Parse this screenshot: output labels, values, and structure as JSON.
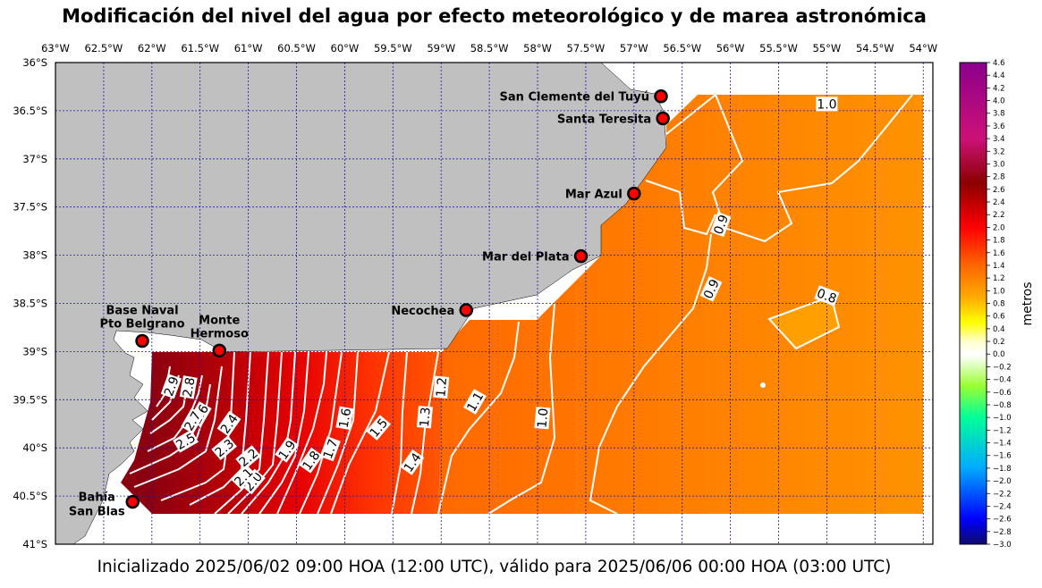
{
  "title": "Modificación del nivel del agua por efecto meteorológico y de marea astronómica",
  "subtitle": "Inicializado 2025/06/02 09:00 HOA (12:00 UTC), válido para 2025/06/06 00:00 HOA (03:00 UTC)",
  "map": {
    "lon_range": [
      -63.0,
      -53.9
    ],
    "lat_range": [
      -41.0,
      -36.0
    ],
    "lon_ticks": [
      {
        "value": -63.0,
        "label": "63°W"
      },
      {
        "value": -62.5,
        "label": "62.5°W"
      },
      {
        "value": -62.0,
        "label": "62°W"
      },
      {
        "value": -61.5,
        "label": "61.5°W"
      },
      {
        "value": -61.0,
        "label": "61°W"
      },
      {
        "value": -60.5,
        "label": "60.5°W"
      },
      {
        "value": -60.0,
        "label": "60°W"
      },
      {
        "value": -59.5,
        "label": "59.5°W"
      },
      {
        "value": -59.0,
        "label": "59°W"
      },
      {
        "value": -58.5,
        "label": "58.5°W"
      },
      {
        "value": -58.0,
        "label": "58°W"
      },
      {
        "value": -57.5,
        "label": "57.5°W"
      },
      {
        "value": -57.0,
        "label": "57°W"
      },
      {
        "value": -56.5,
        "label": "56.5°W"
      },
      {
        "value": -56.0,
        "label": "56°W"
      },
      {
        "value": -55.5,
        "label": "55.5°W"
      },
      {
        "value": -55.0,
        "label": "55°W"
      },
      {
        "value": -54.5,
        "label": "54.5°W"
      },
      {
        "value": -54.0,
        "label": "54°W"
      }
    ],
    "lat_ticks": [
      {
        "value": -36.0,
        "label": "36°S"
      },
      {
        "value": -36.5,
        "label": "36.5°S"
      },
      {
        "value": -37.0,
        "label": "37°S"
      },
      {
        "value": -37.5,
        "label": "37.5°S"
      },
      {
        "value": -38.0,
        "label": "38°S"
      },
      {
        "value": -38.5,
        "label": "38.5°S"
      },
      {
        "value": -39.0,
        "label": "39°S"
      },
      {
        "value": -39.5,
        "label": "39.5°S"
      },
      {
        "value": -40.0,
        "label": "40°S"
      },
      {
        "value": -40.5,
        "label": "40.5°S"
      },
      {
        "value": -41.0,
        "label": "41°S"
      }
    ],
    "colors": {
      "land": "#c0c0c0",
      "grid": "#1a1aa6",
      "contour": "#ffffff"
    }
  },
  "stations": [
    {
      "name": "San Clemente del Tuyú",
      "lon": -56.72,
      "lat": -36.35,
      "label_side": "left"
    },
    {
      "name": "Santa Teresita",
      "lon": -56.7,
      "lat": -36.58,
      "label_side": "left"
    },
    {
      "name": "Mar Azul",
      "lon": -57.0,
      "lat": -37.36,
      "label_side": "left"
    },
    {
      "name": "Mar del Plata",
      "lon": -57.55,
      "lat": -38.01,
      "label_side": "left"
    },
    {
      "name": "Necochea",
      "lon": -58.74,
      "lat": -38.57,
      "label_side": "left"
    },
    {
      "name": "Base Naval Pto Belgrano",
      "lines": [
        "Base Naval",
        "Pto Belgrano"
      ],
      "lon": -62.1,
      "lat": -38.89,
      "label_side": "above"
    },
    {
      "name": "Monte Hermoso",
      "lines": [
        "Monte",
        "Hermoso"
      ],
      "lon": -61.3,
      "lat": -38.99,
      "label_side": "above"
    },
    {
      "name": "Bahía San Blas",
      "lines": [
        "Bahía",
        "San Blas"
      ],
      "lon": -62.2,
      "lat": -40.56,
      "label_side": "left"
    }
  ],
  "contour_labels": [
    {
      "text": "1.0",
      "lon": -55.0,
      "lat": -36.43,
      "angle": 0
    },
    {
      "text": "0.9",
      "lon": -56.1,
      "lat": -37.68,
      "angle": -70
    },
    {
      "text": "0.9",
      "lon": -56.2,
      "lat": -38.35,
      "angle": -65
    },
    {
      "text": "0.8",
      "lon": -55.0,
      "lat": -38.42,
      "angle": 20
    },
    {
      "text": "1.0",
      "lon": -57.95,
      "lat": -39.69,
      "angle": -85
    },
    {
      "text": "1.1",
      "lon": -58.65,
      "lat": -39.52,
      "angle": -60
    },
    {
      "text": "1.2",
      "lon": -59.0,
      "lat": -39.37,
      "angle": -85
    },
    {
      "text": "1.3",
      "lon": -59.17,
      "lat": -39.68,
      "angle": -85
    },
    {
      "text": "1.4",
      "lon": -59.3,
      "lat": -40.15,
      "angle": -55
    },
    {
      "text": "1.5",
      "lon": -59.65,
      "lat": -39.79,
      "angle": -50
    },
    {
      "text": "1.6",
      "lon": -60.0,
      "lat": -39.69,
      "angle": -80
    },
    {
      "text": "1.7",
      "lon": -60.15,
      "lat": -40.01,
      "angle": -70
    },
    {
      "text": "1.8",
      "lon": -60.35,
      "lat": -40.13,
      "angle": -55
    },
    {
      "text": "1.9",
      "lon": -60.6,
      "lat": -40.02,
      "angle": -55
    },
    {
      "text": "2.0",
      "lon": -60.95,
      "lat": -40.35,
      "angle": -50
    },
    {
      "text": "2.1",
      "lon": -61.05,
      "lat": -40.3,
      "angle": -45
    },
    {
      "text": "2.2",
      "lon": -61.0,
      "lat": -40.1,
      "angle": -40
    },
    {
      "text": "2.3",
      "lon": -61.25,
      "lat": -40.0,
      "angle": -40
    },
    {
      "text": "2.4",
      "lon": -61.2,
      "lat": -39.75,
      "angle": -55
    },
    {
      "text": "2.5",
      "lon": -61.65,
      "lat": -39.93,
      "angle": -30
    },
    {
      "text": "2.6",
      "lon": -61.5,
      "lat": -39.65,
      "angle": -60
    },
    {
      "text": "2.7",
      "lon": -61.58,
      "lat": -39.72,
      "angle": -60
    },
    {
      "text": "2.8",
      "lon": -61.62,
      "lat": -39.37,
      "angle": -80
    },
    {
      "text": "2.9",
      "lon": -61.8,
      "lat": -39.36,
      "angle": -70
    }
  ],
  "colorbar": {
    "label": "metros",
    "min": -3.0,
    "max": 4.6,
    "ticks": [
      "4.6",
      "4.4",
      "4.2",
      "4.0",
      "3.8",
      "3.6",
      "3.4",
      "3.2",
      "3.0",
      "2.8",
      "2.6",
      "2.4",
      "2.2",
      "2.0",
      "1.8",
      "1.6",
      "1.4",
      "1.2",
      "1.0",
      "0.8",
      "0.6",
      "0.4",
      "0.2",
      "0.0",
      "−0.2",
      "−0.4",
      "−0.6",
      "−0.8",
      "−1.0",
      "−1.2",
      "−1.4",
      "−1.6",
      "−1.8",
      "−2.0",
      "−2.2",
      "−2.4",
      "−2.6",
      "−2.8",
      "−3.0"
    ],
    "tick_values": [
      4.6,
      4.4,
      4.2,
      4.0,
      3.8,
      3.6,
      3.4,
      3.2,
      3.0,
      2.8,
      2.6,
      2.4,
      2.2,
      2.0,
      1.8,
      1.6,
      1.4,
      1.2,
      1.0,
      0.8,
      0.6,
      0.4,
      0.2,
      0.0,
      -0.2,
      -0.4,
      -0.6,
      -0.8,
      -1.0,
      -1.2,
      -1.4,
      -1.6,
      -1.8,
      -2.0,
      -2.2,
      -2.4,
      -2.6,
      -2.8,
      -3.0
    ],
    "stops": [
      {
        "v": -3.0,
        "c": "#0d0b6b"
      },
      {
        "v": -2.6,
        "c": "#0000ff"
      },
      {
        "v": -1.8,
        "c": "#00aaff"
      },
      {
        "v": -1.0,
        "c": "#00ff99"
      },
      {
        "v": -0.5,
        "c": "#99ff33"
      },
      {
        "v": -0.1,
        "c": "#eeffdd"
      },
      {
        "v": 0.0,
        "c": "#ffffff"
      },
      {
        "v": 0.2,
        "c": "#ffffcc"
      },
      {
        "v": 0.5,
        "c": "#ffff00"
      },
      {
        "v": 0.9,
        "c": "#ffaa00"
      },
      {
        "v": 1.4,
        "c": "#ff6600"
      },
      {
        "v": 2.0,
        "c": "#ff0000"
      },
      {
        "v": 2.7,
        "c": "#8b0000"
      },
      {
        "v": 3.4,
        "c": "#cc1177"
      },
      {
        "v": 4.6,
        "c": "#8b008b"
      }
    ]
  }
}
